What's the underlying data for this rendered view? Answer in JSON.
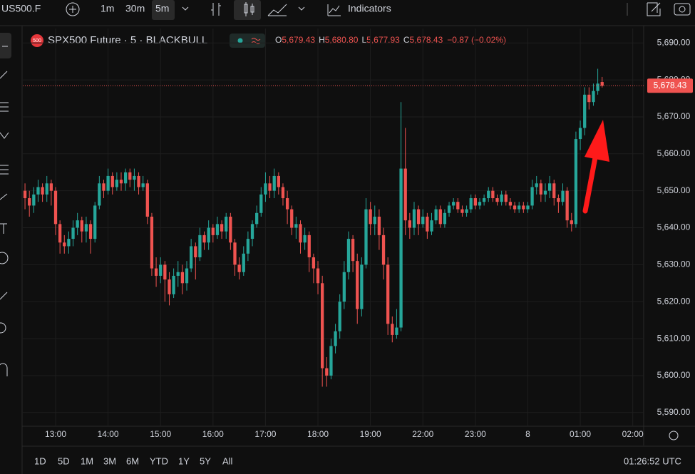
{
  "toolbar": {
    "symbol": "US500.F",
    "intervals": [
      "1m",
      "30m",
      "5m"
    ],
    "indicators": "Indicators"
  },
  "chart_data": {
    "type": "candlestick",
    "title": "SPX500 Future · 5 · BLACKBULL",
    "badge": "500",
    "legend": [
      {
        "key": "O",
        "value": "5,679.43"
      },
      {
        "key": "H",
        "value": "5,680.80"
      },
      {
        "key": "L",
        "value": "5,677.93"
      },
      {
        "key": "C",
        "value": "5,678.43"
      }
    ],
    "change": "−0.87 (−0.02%)",
    "last_price_label": "5,678.43",
    "up_color": "#26a69a",
    "down_color": "#ef5350",
    "grid": true,
    "open": [
      5650,
      5648,
      5646,
      5649,
      5651,
      5649,
      5652,
      5650,
      5641,
      5636,
      5635,
      5637,
      5640,
      5642,
      5639,
      5641,
      5637,
      5646,
      5652,
      5650,
      5654,
      5651,
      5653,
      5652,
      5655,
      5653,
      5654,
      5651,
      5652,
      5643,
      5629,
      5627,
      5630,
      5626,
      5622,
      5627,
      5628,
      5625,
      5629,
      5635,
      5632,
      5638,
      5636,
      5640,
      5638,
      5641,
      5639,
      5643,
      5636,
      5630,
      5628,
      5633,
      5637,
      5641,
      5644,
      5649,
      5652,
      5650,
      5654,
      5651,
      5648,
      5645,
      5640,
      5641,
      5636,
      5638,
      5632,
      5629,
      5625,
      5602,
      5600,
      5608,
      5612,
      5620,
      5628,
      5637,
      5631,
      5618,
      5630,
      5645,
      5641,
      5643,
      5638,
      5630,
      5614,
      5611,
      5613,
      5656,
      5642,
      5640,
      5645,
      5641,
      5643,
      5639,
      5642,
      5645,
      5641,
      5644,
      5646,
      5647,
      5645,
      5644,
      5645,
      5648,
      5646,
      5647,
      5648,
      5650,
      5648,
      5647,
      5649,
      5647,
      5646,
      5645,
      5646,
      5645,
      5646,
      5651,
      5652,
      5649,
      5650,
      5652,
      5648,
      5647,
      5650,
      5642,
      5641,
      5664,
      5667,
      5676,
      5674,
      5677,
      5679.43
    ],
    "high": [
      5652,
      5650,
      5651,
      5653,
      5652,
      5654,
      5653,
      5651,
      5642,
      5638,
      5639,
      5642,
      5644,
      5643,
      5643,
      5642,
      5647,
      5654,
      5653,
      5656,
      5655,
      5655,
      5655,
      5656,
      5656,
      5656,
      5655,
      5654,
      5653,
      5644,
      5632,
      5632,
      5631,
      5628,
      5629,
      5631,
      5630,
      5631,
      5637,
      5636,
      5640,
      5639,
      5642,
      5641,
      5643,
      5642,
      5644,
      5644,
      5637,
      5632,
      5635,
      5639,
      5642,
      5646,
      5651,
      5655,
      5654,
      5656,
      5655,
      5652,
      5650,
      5646,
      5643,
      5642,
      5640,
      5639,
      5633,
      5631,
      5627,
      5605,
      5610,
      5614,
      5622,
      5631,
      5639,
      5638,
      5633,
      5632,
      5648,
      5647,
      5646,
      5645,
      5640,
      5632,
      5616,
      5618,
      5674,
      5667,
      5644,
      5647,
      5646,
      5645,
      5644,
      5644,
      5646,
      5646,
      5645,
      5647,
      5648,
      5648,
      5646,
      5646,
      5649,
      5649,
      5648,
      5649,
      5651,
      5651,
      5649,
      5650,
      5650,
      5648,
      5647,
      5647,
      5647,
      5647,
      5653,
      5654,
      5653,
      5652,
      5654,
      5653,
      5649,
      5652,
      5651,
      5644,
      5666,
      5669,
      5678,
      5678,
      5679,
      5683,
      5680.8
    ],
    "low": [
      5645,
      5643,
      5644,
      5647,
      5647,
      5647,
      5646,
      5638,
      5633,
      5633,
      5633,
      5635,
      5638,
      5636,
      5636,
      5633,
      5636,
      5645,
      5648,
      5649,
      5649,
      5650,
      5650,
      5650,
      5651,
      5650,
      5649,
      5650,
      5641,
      5627,
      5624,
      5625,
      5620,
      5619,
      5621,
      5624,
      5622,
      5623,
      5628,
      5626,
      5631,
      5634,
      5634,
      5636,
      5637,
      5637,
      5637,
      5634,
      5627,
      5626,
      5627,
      5631,
      5635,
      5640,
      5643,
      5647,
      5648,
      5648,
      5649,
      5646,
      5641,
      5638,
      5637,
      5633,
      5634,
      5628,
      5625,
      5622,
      5597,
      5597,
      5599,
      5606,
      5610,
      5618,
      5626,
      5628,
      5614,
      5616,
      5629,
      5638,
      5638,
      5634,
      5626,
      5611,
      5609,
      5610,
      5612,
      5638,
      5637,
      5638,
      5638,
      5640,
      5637,
      5638,
      5641,
      5640,
      5640,
      5643,
      5645,
      5644,
      5643,
      5643,
      5644,
      5645,
      5645,
      5646,
      5647,
      5647,
      5646,
      5646,
      5646,
      5645,
      5644,
      5644,
      5644,
      5644,
      5645,
      5649,
      5647,
      5647,
      5648,
      5646,
      5644,
      5646,
      5640,
      5639,
      5640,
      5661,
      5665,
      5672,
      5673,
      5676,
      5677.93
    ],
    "close": [
      5648,
      5646,
      5649,
      5651,
      5649,
      5652,
      5650,
      5641,
      5636,
      5635,
      5637,
      5640,
      5642,
      5639,
      5641,
      5637,
      5646,
      5652,
      5650,
      5654,
      5651,
      5653,
      5652,
      5655,
      5653,
      5654,
      5651,
      5652,
      5643,
      5629,
      5627,
      5630,
      5626,
      5622,
      5627,
      5628,
      5625,
      5629,
      5635,
      5632,
      5638,
      5636,
      5640,
      5638,
      5641,
      5639,
      5643,
      5636,
      5630,
      5628,
      5633,
      5637,
      5641,
      5644,
      5649,
      5652,
      5650,
      5654,
      5651,
      5648,
      5645,
      5640,
      5641,
      5636,
      5638,
      5632,
      5629,
      5625,
      5602,
      5600,
      5608,
      5612,
      5620,
      5628,
      5637,
      5631,
      5618,
      5630,
      5645,
      5641,
      5643,
      5638,
      5630,
      5614,
      5611,
      5613,
      5656,
      5642,
      5640,
      5645,
      5641,
      5643,
      5639,
      5642,
      5645,
      5641,
      5644,
      5646,
      5647,
      5645,
      5644,
      5645,
      5648,
      5646,
      5647,
      5648,
      5650,
      5648,
      5647,
      5649,
      5647,
      5646,
      5645,
      5646,
      5645,
      5646,
      5651,
      5652,
      5649,
      5650,
      5652,
      5648,
      5647,
      5650,
      5642,
      5641,
      5664,
      5667,
      5676,
      5674,
      5677,
      5679,
      5678.43
    ],
    "xlim": [
      -0.5,
      141.5
    ],
    "xticks": [
      {
        "value": 7,
        "label": "13:00"
      },
      {
        "value": 19,
        "label": "14:00"
      },
      {
        "value": 31,
        "label": "15:00"
      },
      {
        "value": 43,
        "label": "16:00"
      },
      {
        "value": 55,
        "label": "17:00"
      },
      {
        "value": 67,
        "label": "18:00"
      },
      {
        "value": 79,
        "label": "19:00"
      },
      {
        "value": 91,
        "label": "22:00"
      },
      {
        "value": 103,
        "label": "23:00"
      },
      {
        "value": 115,
        "label": "8"
      },
      {
        "value": 127,
        "label": "01:00"
      },
      {
        "value": 139,
        "label": "02:00"
      }
    ],
    "ylim": [
      5586.3,
      5693.9
    ],
    "yticks": [
      {
        "value": 5590,
        "label": "5,590.00"
      },
      {
        "value": 5600,
        "label": "5,600.00"
      },
      {
        "value": 5610,
        "label": "5,610.00"
      },
      {
        "value": 5620,
        "label": "5,620.00"
      },
      {
        "value": 5630,
        "label": "5,630.00"
      },
      {
        "value": 5640,
        "label": "5,640.00"
      },
      {
        "value": 5650,
        "label": "5,650.00"
      },
      {
        "value": 5660,
        "label": "5,660.00"
      },
      {
        "value": 5670,
        "label": "5,670.00"
      },
      {
        "value": 5680,
        "label": "5,680.00"
      },
      {
        "value": 5690,
        "label": "5,690.00"
      }
    ]
  },
  "footer": {
    "ranges": [
      "1D",
      "5D",
      "1M",
      "3M",
      "6M",
      "YTD",
      "1Y",
      "5Y",
      "All"
    ],
    "clock": "01:26:52 UTC"
  }
}
